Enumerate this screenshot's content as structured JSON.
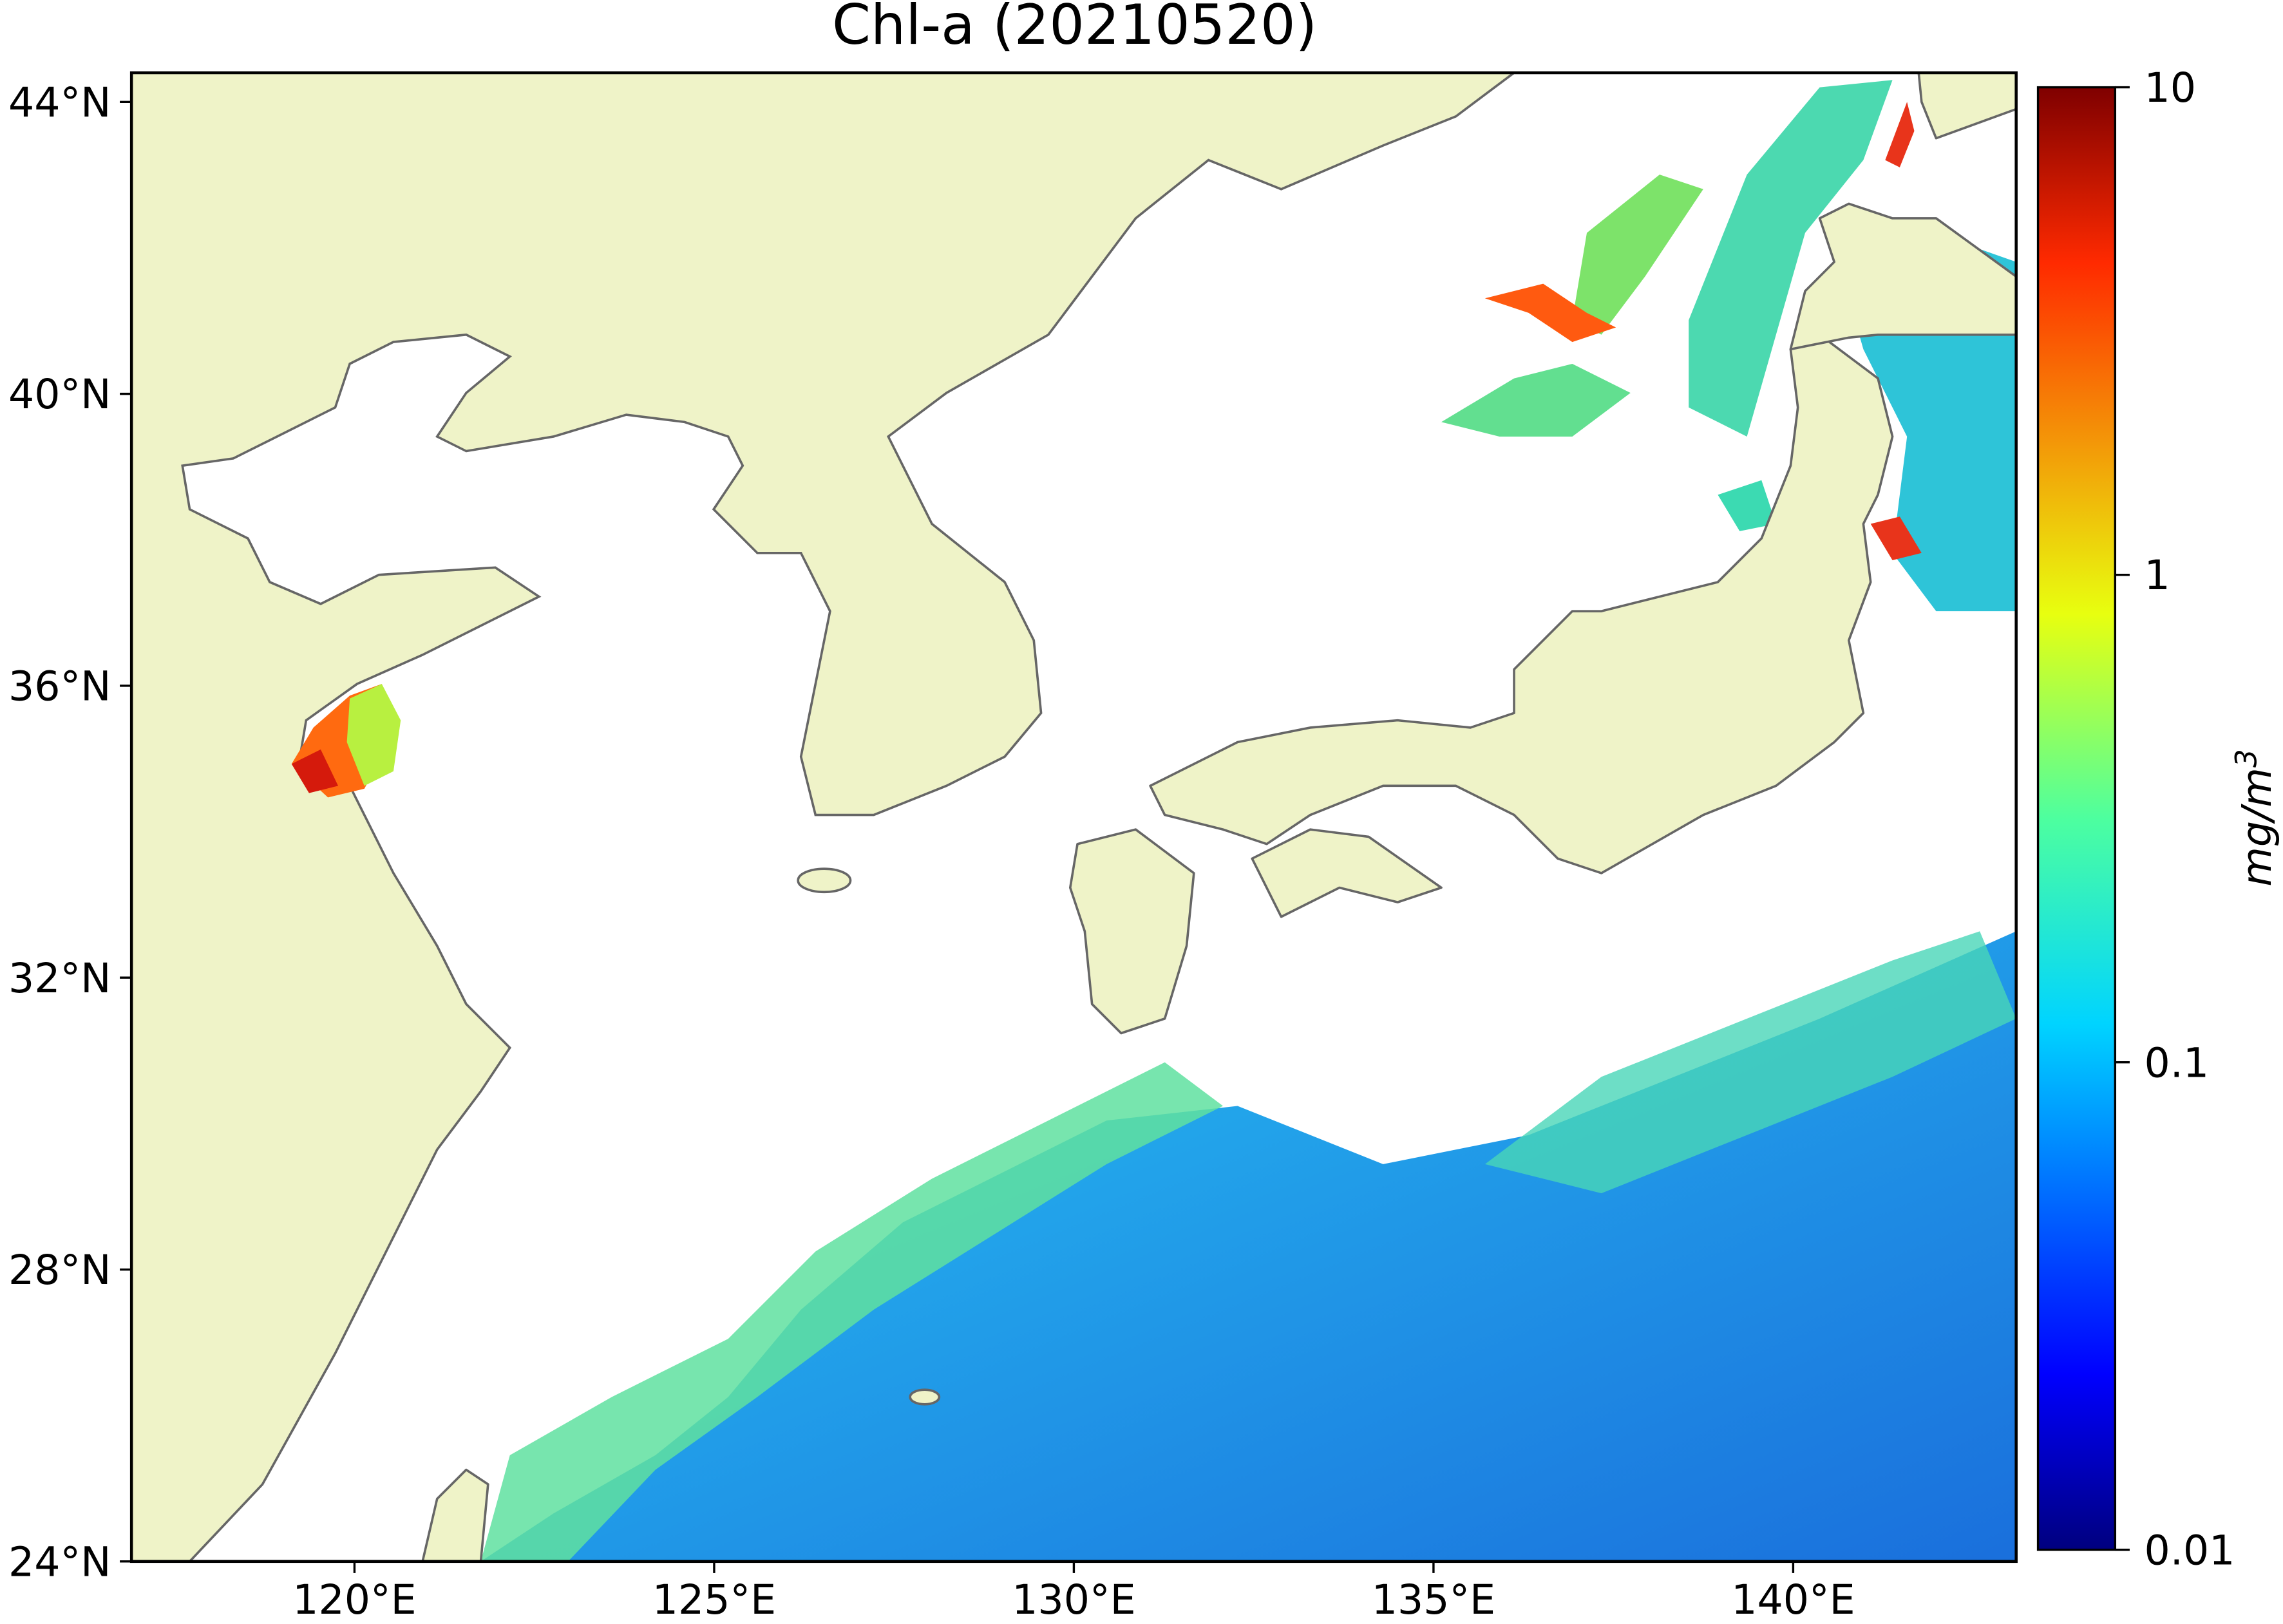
{
  "map": {
    "title": "Chl-a (20210520)",
    "xlim": [
      116.9,
      143.1
    ],
    "ylim": [
      24,
      44.4
    ],
    "lon_ticks": [
      {
        "value": 120,
        "label": "120°E"
      },
      {
        "value": 125,
        "label": "125°E"
      },
      {
        "value": 130,
        "label": "130°E"
      },
      {
        "value": 135,
        "label": "135°E"
      },
      {
        "value": 140,
        "label": "140°E"
      }
    ],
    "lat_ticks": [
      {
        "value": 24,
        "label": "24°N"
      },
      {
        "value": 28,
        "label": "28°N"
      },
      {
        "value": 32,
        "label": "32°N"
      },
      {
        "value": 36,
        "label": "36°N"
      },
      {
        "value": 40,
        "label": "40°N"
      },
      {
        "value": 44,
        "label": "44°N"
      }
    ],
    "colorbar": {
      "log_scale": true,
      "lim": [
        0.01,
        10
      ],
      "ticks": [
        {
          "value": 0.01,
          "label": "0.01"
        },
        {
          "value": 0.1,
          "label": "0.1"
        },
        1,
        10
      ],
      "label": {
        "text": "mg/m",
        "superscript": "3"
      }
    }
  }
}
